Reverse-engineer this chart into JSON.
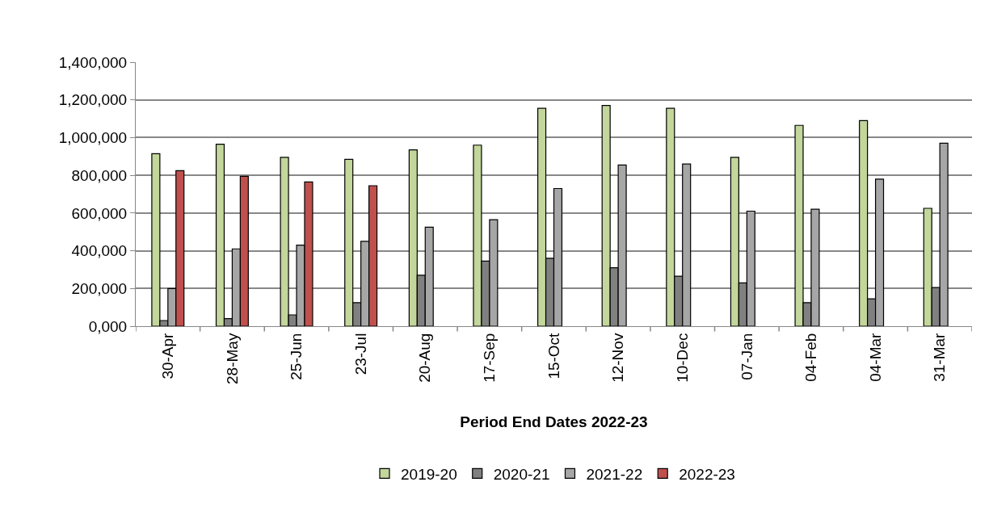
{
  "chart_data": {
    "type": "bar",
    "xlabel": "Period End Dates 2022-23",
    "categories": [
      "30-Apr",
      "28-May",
      "25-Jun",
      "23-Jul",
      "20-Aug",
      "17-Sep",
      "15-Oct",
      "12-Nov",
      "10-Dec",
      "07-Jan",
      "04-Feb",
      "04-Mar",
      "31-Mar"
    ],
    "series": [
      {
        "name": "2019-20",
        "color": "#c3d69b",
        "values": [
          915000,
          965000,
          895000,
          885000,
          935000,
          960000,
          1155000,
          1170000,
          1155000,
          895000,
          1065000,
          1090000,
          625000
        ]
      },
      {
        "name": "2020-21",
        "color": "#808080",
        "values": [
          30000,
          40000,
          60000,
          125000,
          270000,
          345000,
          360000,
          310000,
          265000,
          230000,
          125000,
          145000,
          205000
        ]
      },
      {
        "name": "2021-22",
        "color": "#a6a6a6",
        "values": [
          200000,
          410000,
          430000,
          450000,
          525000,
          565000,
          730000,
          855000,
          860000,
          610000,
          620000,
          780000,
          970000
        ]
      },
      {
        "name": "2022-23",
        "color": "#c0504d",
        "values": [
          825000,
          795000,
          765000,
          745000,
          null,
          null,
          null,
          null,
          null,
          null,
          null,
          null,
          null
        ]
      }
    ],
    "ylim": [
      0,
      1400000
    ],
    "yticks": [
      {
        "value": 0,
        "label": "0,000"
      },
      {
        "value": 200000,
        "label": "200,000"
      },
      {
        "value": 400000,
        "label": "400,000"
      },
      {
        "value": 600000,
        "label": "600,000"
      },
      {
        "value": 800000,
        "label": "800,000"
      },
      {
        "value": 1000000,
        "label": "1,000,000"
      },
      {
        "value": 1200000,
        "label": "1,200,000"
      },
      {
        "value": 1400000,
        "label": "1,400,000"
      }
    ],
    "grid": "y",
    "legend": "bottom"
  }
}
